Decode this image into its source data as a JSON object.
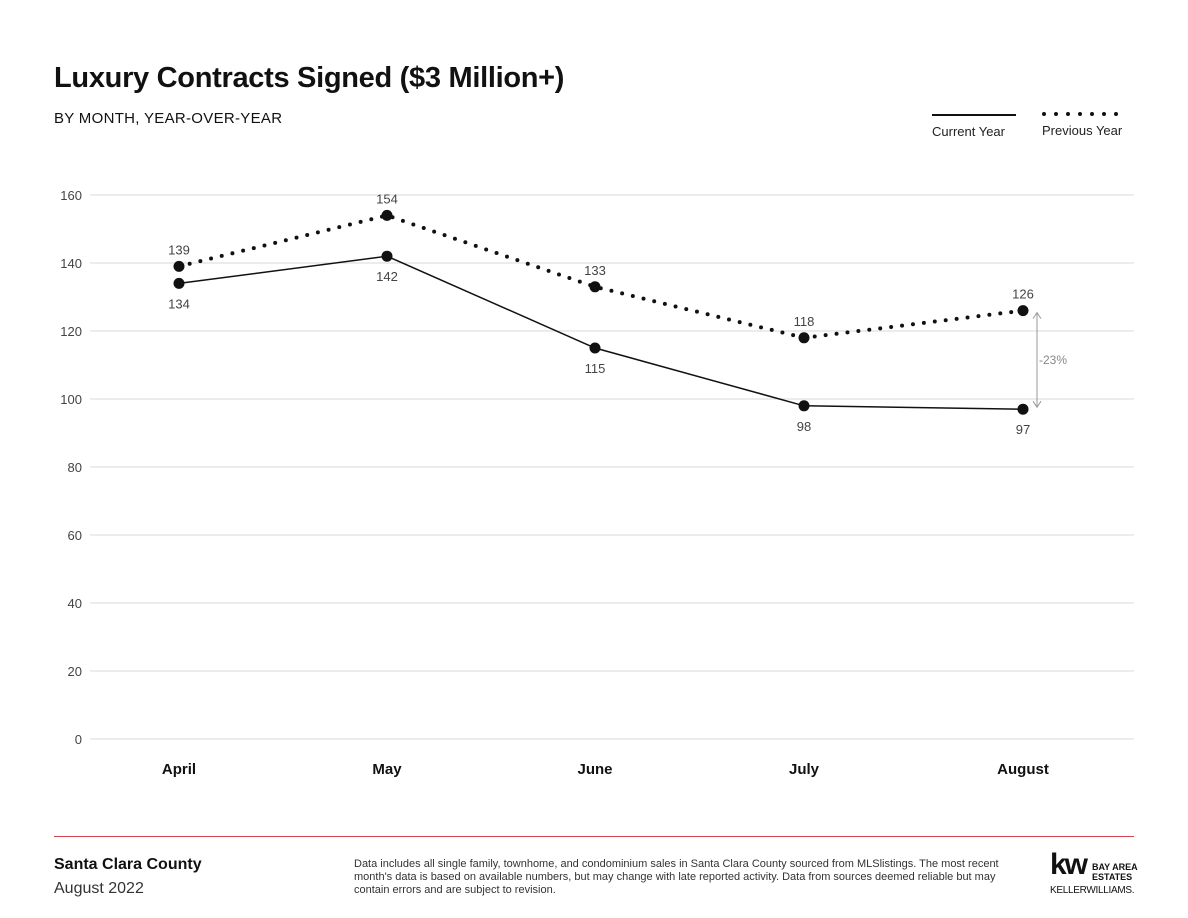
{
  "header": {
    "title": "Luxury Contracts Signed ($3 Million+)",
    "subtitle": "BY MONTH, YEAR-OVER-YEAR"
  },
  "legend": {
    "current": "Current Year",
    "previous": "Previous Year"
  },
  "chart_data": {
    "type": "line",
    "title": "Luxury Contracts Signed ($3 Million+)",
    "subtitle": "BY MONTH, YEAR-OVER-YEAR",
    "categories": [
      "April",
      "May",
      "June",
      "July",
      "August"
    ],
    "ylim": [
      0,
      160
    ],
    "yticks": [
      0,
      20,
      40,
      60,
      80,
      100,
      120,
      140,
      160
    ],
    "grid": true,
    "legend_position": "top-right",
    "series": [
      {
        "name": "Current Year",
        "style": "solid",
        "values": [
          134,
          142,
          115,
          98,
          97
        ]
      },
      {
        "name": "Previous Year",
        "style": "dotted",
        "values": [
          139,
          154,
          133,
          118,
          126
        ]
      }
    ],
    "annotations": [
      {
        "text": "-23%",
        "category": "August"
      }
    ]
  },
  "footer": {
    "county": "Santa Clara County",
    "date": "August 2022",
    "disclaimer": "Data includes all single family, townhome, and condominium sales in Santa Clara County sourced from MLSlistings. The most recent month's data is based on available numbers, but may change with late reported activity. Data from sources deemed reliable but may contain errors and are subject to revision."
  },
  "logo": {
    "mark": "kw",
    "line1": "BAY AREA",
    "line2": "ESTATES",
    "wordmark": "KELLERWILLIAMS."
  },
  "colors": {
    "line": "#111111",
    "grid": "#d9d9d9",
    "axis_text": "#444444",
    "footer_rule": "#d64550"
  }
}
